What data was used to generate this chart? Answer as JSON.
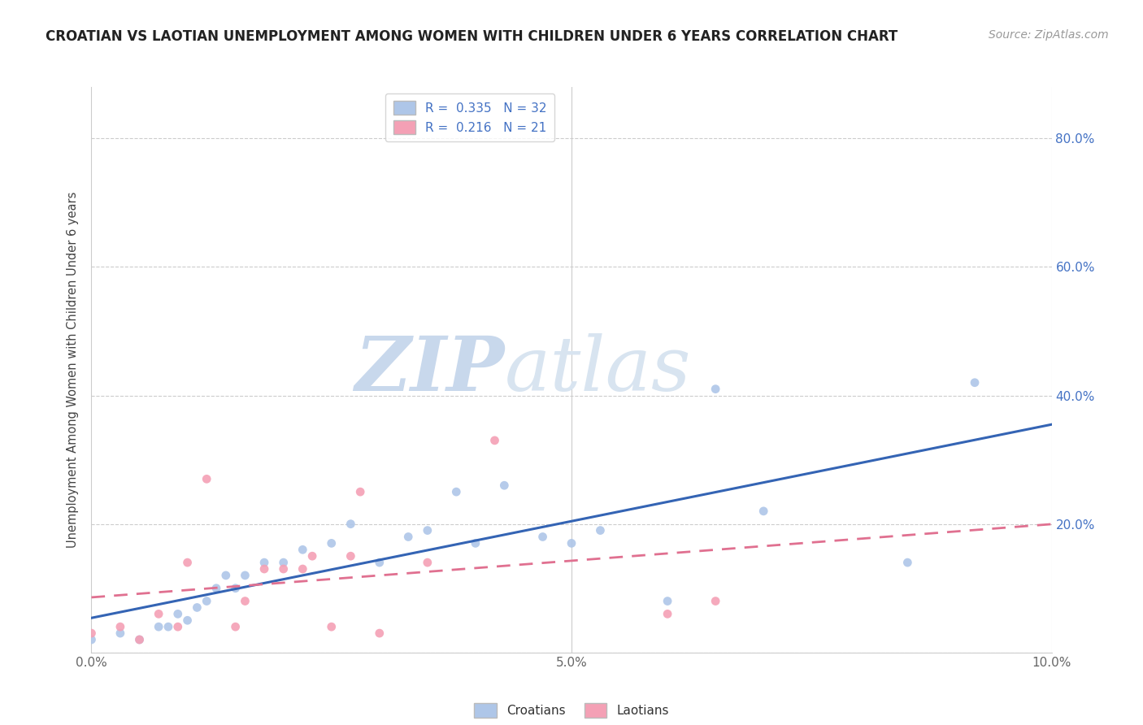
{
  "title": "CROATIAN VS LAOTIAN UNEMPLOYMENT AMONG WOMEN WITH CHILDREN UNDER 6 YEARS CORRELATION CHART",
  "source": "Source: ZipAtlas.com",
  "ylabel": "Unemployment Among Women with Children Under 6 years",
  "xlabel": "",
  "xlim": [
    0.0,
    0.1
  ],
  "ylim": [
    0.0,
    0.88
  ],
  "ytick_values": [
    0.0,
    0.2,
    0.4,
    0.6,
    0.8
  ],
  "ytick_labels_right": [
    "",
    "20.0%",
    "40.0%",
    "60.0%",
    "80.0%"
  ],
  "xtick_values": [
    0.0,
    0.01,
    0.02,
    0.03,
    0.04,
    0.05,
    0.06,
    0.07,
    0.08,
    0.09,
    0.1
  ],
  "xtick_labels": [
    "0.0%",
    "",
    "",
    "",
    "",
    "5.0%",
    "",
    "",
    "",
    "",
    "10.0%"
  ],
  "legend_croatians": "Croatians",
  "legend_laotians": "Laotians",
  "R_croatian": 0.335,
  "N_croatian": 32,
  "R_laotian": 0.216,
  "N_laotian": 21,
  "croatian_color": "#aec6e8",
  "laotian_color": "#f4a0b5",
  "croatian_line_color": "#3464b4",
  "laotian_line_color": "#e07090",
  "watermark_zip": "ZIP",
  "watermark_atlas": "atlas",
  "croatian_x": [
    0.0,
    0.003,
    0.005,
    0.007,
    0.008,
    0.009,
    0.01,
    0.011,
    0.012,
    0.013,
    0.014,
    0.015,
    0.016,
    0.018,
    0.02,
    0.022,
    0.025,
    0.027,
    0.03,
    0.033,
    0.035,
    0.038,
    0.04,
    0.043,
    0.047,
    0.05,
    0.053,
    0.06,
    0.065,
    0.07,
    0.085,
    0.092
  ],
  "croatian_y": [
    0.02,
    0.03,
    0.02,
    0.04,
    0.04,
    0.06,
    0.05,
    0.07,
    0.08,
    0.1,
    0.12,
    0.1,
    0.12,
    0.14,
    0.14,
    0.16,
    0.17,
    0.2,
    0.14,
    0.18,
    0.19,
    0.25,
    0.17,
    0.26,
    0.18,
    0.17,
    0.19,
    0.08,
    0.41,
    0.22,
    0.14,
    0.42
  ],
  "laotian_x": [
    0.0,
    0.003,
    0.005,
    0.007,
    0.009,
    0.01,
    0.012,
    0.015,
    0.016,
    0.018,
    0.02,
    0.022,
    0.023,
    0.025,
    0.027,
    0.028,
    0.03,
    0.035,
    0.042,
    0.06,
    0.065
  ],
  "laotian_y": [
    0.03,
    0.04,
    0.02,
    0.06,
    0.04,
    0.14,
    0.27,
    0.04,
    0.08,
    0.13,
    0.13,
    0.13,
    0.15,
    0.04,
    0.15,
    0.25,
    0.03,
    0.14,
    0.33,
    0.06,
    0.08
  ]
}
